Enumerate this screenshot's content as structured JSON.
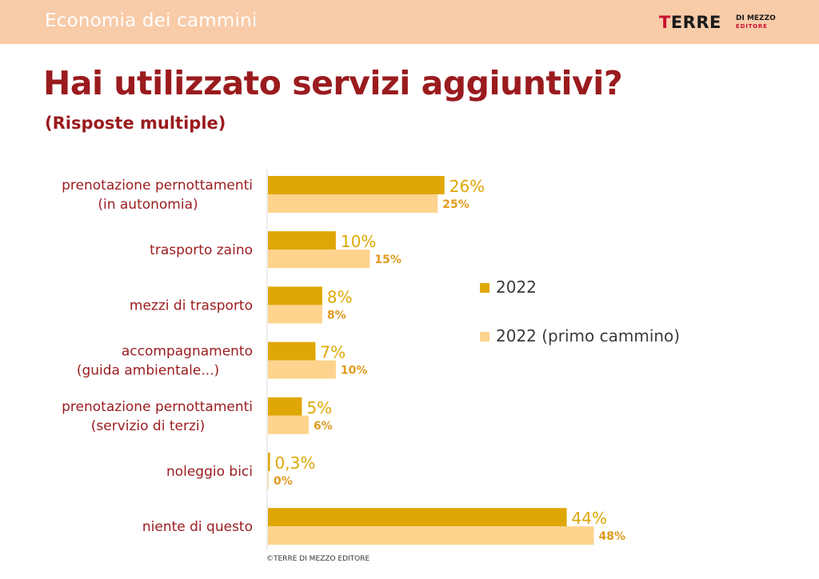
{
  "header": {
    "section": "Economia dei cammini",
    "logo_main_1": "T",
    "logo_main_2": "ERRE",
    "logo_sub_1": "DI MEZZO",
    "logo_sub_2": "EDITORE"
  },
  "footer": "©TERRE DI MEZZO EDITORE",
  "colors": {
    "series_2022": "#dfa705",
    "series_primo": "#fdd38d",
    "label_primo": "#e09a1e",
    "category_text": "#9a1b1e",
    "title": "#9a1b1e",
    "topbar": "#f8cba9"
  },
  "chart_data": {
    "type": "bar",
    "orientation": "horizontal",
    "title": "Hai utilizzato servizi aggiuntivi?",
    "subtitle": "(Risposte multiple)",
    "categories": [
      [
        "prenotazione pernottamenti",
        "(in autonomia)"
      ],
      [
        "trasporto zaino"
      ],
      [
        "mezzi di trasporto"
      ],
      [
        "accompagnamento",
        "(guida ambientale...)"
      ],
      [
        "prenotazione pernottamenti",
        "(servizio di terzi)"
      ],
      [
        "noleggio bici"
      ],
      [
        "niente di questo"
      ]
    ],
    "series": [
      {
        "name": "2022",
        "values": [
          26,
          10,
          8,
          7,
          5,
          0.3,
          44
        ],
        "labels": [
          "26%",
          "10%",
          "8%",
          "7%",
          "5%",
          "0,3%",
          "44%"
        ]
      },
      {
        "name": "2022 (primo cammino)",
        "values": [
          25,
          15,
          8,
          10,
          6,
          0,
          48
        ],
        "labels": [
          "25%",
          "15%",
          "8%",
          "10%",
          "6%",
          "0%",
          "48%"
        ]
      }
    ],
    "legend_position": "right",
    "grid": false
  }
}
